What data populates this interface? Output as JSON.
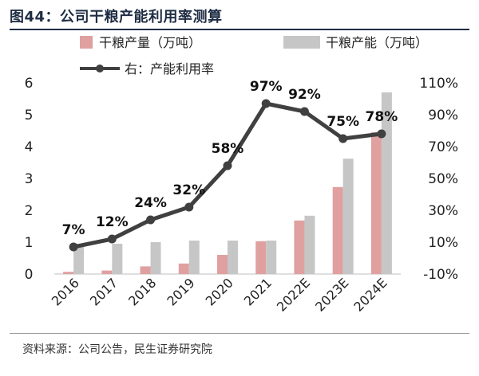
{
  "header": {
    "title": "图44：公司干粮产能利用率测算"
  },
  "footer": {
    "source": "资料来源：公司公告，民生证券研究院"
  },
  "chart_data": {
    "type": "bar",
    "categories": [
      "2016",
      "2017",
      "2018",
      "2019",
      "2020",
      "2021",
      "2022E",
      "2023E",
      "2024E"
    ],
    "series": [
      {
        "name": "干粮产量（万吨）",
        "type": "bar",
        "axis": "left",
        "color": "#e0a0a0",
        "values": [
          0.07,
          0.11,
          0.24,
          0.33,
          0.6,
          1.03,
          1.68,
          2.73,
          4.45
        ]
      },
      {
        "name": "干粮产能（万吨）",
        "type": "bar",
        "axis": "left",
        "color": "#c6c6c6",
        "values": [
          0.95,
          0.95,
          1.0,
          1.05,
          1.05,
          1.05,
          1.83,
          3.62,
          5.7
        ]
      },
      {
        "name": "右：产能利用率",
        "type": "line",
        "axis": "right",
        "color": "#404040",
        "values": [
          7,
          12,
          24,
          32,
          58,
          97,
          92,
          75,
          78
        ],
        "labels": [
          "7%",
          "12%",
          "24%",
          "32%",
          "58%",
          "97%",
          "92%",
          "75%",
          "78%"
        ]
      }
    ],
    "yleft": {
      "ylim": [
        0,
        6
      ],
      "ticks": [
        0,
        1,
        2,
        3,
        4,
        5,
        6
      ],
      "tick_labels": [
        "0",
        "1",
        "2",
        "3",
        "4",
        "5",
        "6"
      ]
    },
    "yright": {
      "ylim": [
        -10,
        110
      ],
      "ticks": [
        -10,
        10,
        30,
        50,
        70,
        90,
        110
      ],
      "tick_labels": [
        "-10%",
        "10%",
        "30%",
        "50%",
        "70%",
        "90%",
        "110%"
      ]
    },
    "legend": {
      "position": "top"
    },
    "grid": false
  }
}
